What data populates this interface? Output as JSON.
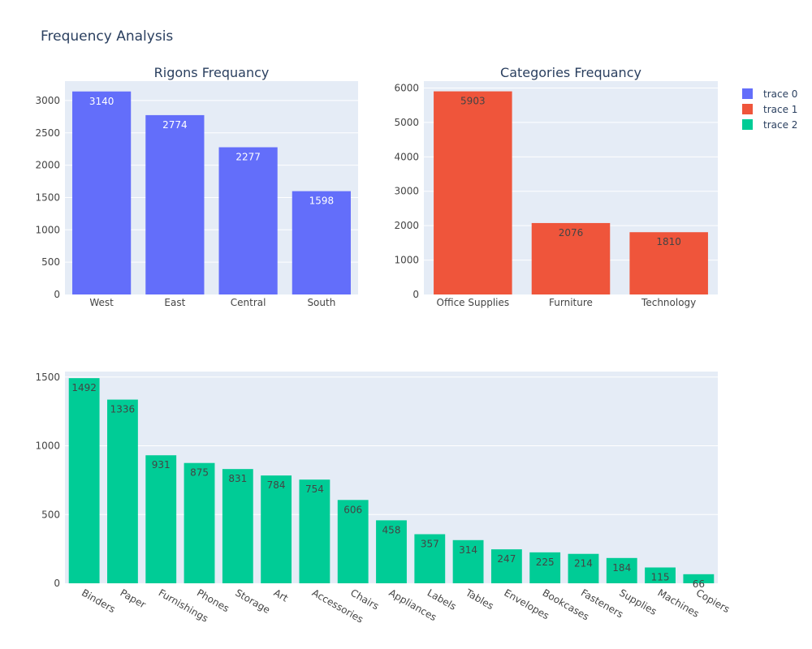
{
  "title": "Frequency Analysis",
  "colors": {
    "plot_bg": "#e5ecf6",
    "trace0": "#636efa",
    "trace1": "#ef553b",
    "trace2": "#00cc96"
  },
  "legend": {
    "placement": "top-right",
    "items": [
      {
        "name": "trace 0",
        "color": "#636efa"
      },
      {
        "name": "trace 1",
        "color": "#ef553b"
      },
      {
        "name": "trace 2",
        "color": "#00cc96"
      }
    ]
  },
  "chart_data": [
    {
      "type": "bar",
      "title": "Rigons Frequancy",
      "series_name": "trace 0",
      "categories": [
        "West",
        "East",
        "Central",
        "South"
      ],
      "values": [
        3140,
        2774,
        2277,
        1598
      ],
      "ylim": [
        0,
        3300
      ],
      "yticks": [
        0,
        500,
        1000,
        1500,
        2000,
        2500,
        3000
      ],
      "label_color": "#ffffff",
      "grid": true
    },
    {
      "type": "bar",
      "title": "Categories Frequancy",
      "series_name": "trace 1",
      "categories": [
        "Office Supplies",
        "Furniture",
        "Technology"
      ],
      "values": [
        5903,
        2076,
        1810
      ],
      "ylim": [
        0,
        6200
      ],
      "yticks": [
        0,
        1000,
        2000,
        3000,
        4000,
        5000,
        6000
      ],
      "label_color": "#444444",
      "grid": true
    },
    {
      "type": "bar",
      "title": "",
      "series_name": "trace 2",
      "categories": [
        "Binders",
        "Paper",
        "Furnishings",
        "Phones",
        "Storage",
        "Art",
        "Accessories",
        "Chairs",
        "Appliances",
        "Labels",
        "Tables",
        "Envelopes",
        "Bookcases",
        "Fasteners",
        "Supplies",
        "Machines",
        "Copiers"
      ],
      "values": [
        1492,
        1336,
        931,
        875,
        831,
        784,
        754,
        606,
        458,
        357,
        314,
        247,
        225,
        214,
        184,
        115,
        66
      ],
      "ylim": [
        0,
        1540
      ],
      "yticks": [
        0,
        500,
        1000,
        1500
      ],
      "label_color": "#444444",
      "grid": true
    }
  ]
}
